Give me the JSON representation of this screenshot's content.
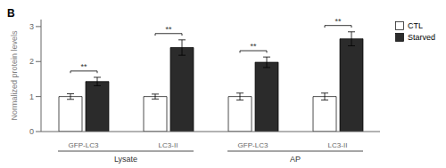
{
  "chart_data": {
    "type": "bar",
    "title": "B",
    "categories": [
      "GFP-LC3",
      "LC3-II",
      "GFP-LC3",
      "LC3-II"
    ],
    "category_groups": [
      "Lysate",
      "Lysate",
      "AP",
      "AP"
    ],
    "ylabel": "Normalized protein levels",
    "ylim": [
      0,
      3.2
    ],
    "yticks": [
      0,
      1,
      2,
      3
    ],
    "grid": false,
    "legend": "upper right",
    "series": [
      {
        "name": "CTL",
        "color": "white",
        "values": [
          1.0,
          1.0,
          1.0,
          1.0
        ],
        "errors": [
          0.08,
          0.07,
          0.1,
          0.1
        ]
      },
      {
        "name": "Starved",
        "color": "#2b2b2b",
        "values": [
          1.43,
          2.4,
          1.98,
          2.65
        ],
        "errors": [
          0.12,
          0.22,
          0.15,
          0.2
        ]
      }
    ],
    "significance": [
      "**",
      "**",
      "**",
      "**"
    ]
  }
}
